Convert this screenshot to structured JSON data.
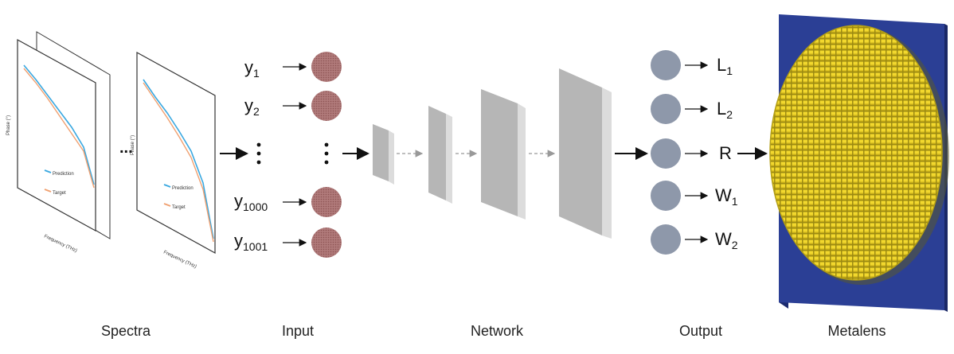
{
  "sections": {
    "spectra": "Spectra",
    "input": "Input",
    "network": "Network",
    "output": "Output",
    "metalens": "Metalens"
  },
  "spectra_plot": {
    "ylabel": "Phase (°)",
    "xlabel": "Frequency (THz)",
    "legend_prediction": "Prediction",
    "legend_target": "Target",
    "ellipsis": "...",
    "colors": {
      "prediction": "#3aa8e0",
      "target": "#f0a070"
    }
  },
  "inputs": [
    {
      "base": "y",
      "sub": "1"
    },
    {
      "base": "y",
      "sub": "2"
    },
    {
      "base": "y",
      "sub": "1000"
    },
    {
      "base": "y",
      "sub": "1001"
    }
  ],
  "outputs": [
    {
      "base": "L",
      "sub": "1"
    },
    {
      "base": "L",
      "sub": "2"
    },
    {
      "base": "R",
      "sub": ""
    },
    {
      "base": "W",
      "sub": "1"
    },
    {
      "base": "W",
      "sub": "2"
    }
  ],
  "colors": {
    "input_node": "#a86a6a",
    "output_node": "#8e98aa",
    "layer_front": "#b8b8b8",
    "layer_side": "#d6d6d6",
    "metalens_substrate": "#2b3f95",
    "metalens_pillar": "#e8cf2a"
  }
}
